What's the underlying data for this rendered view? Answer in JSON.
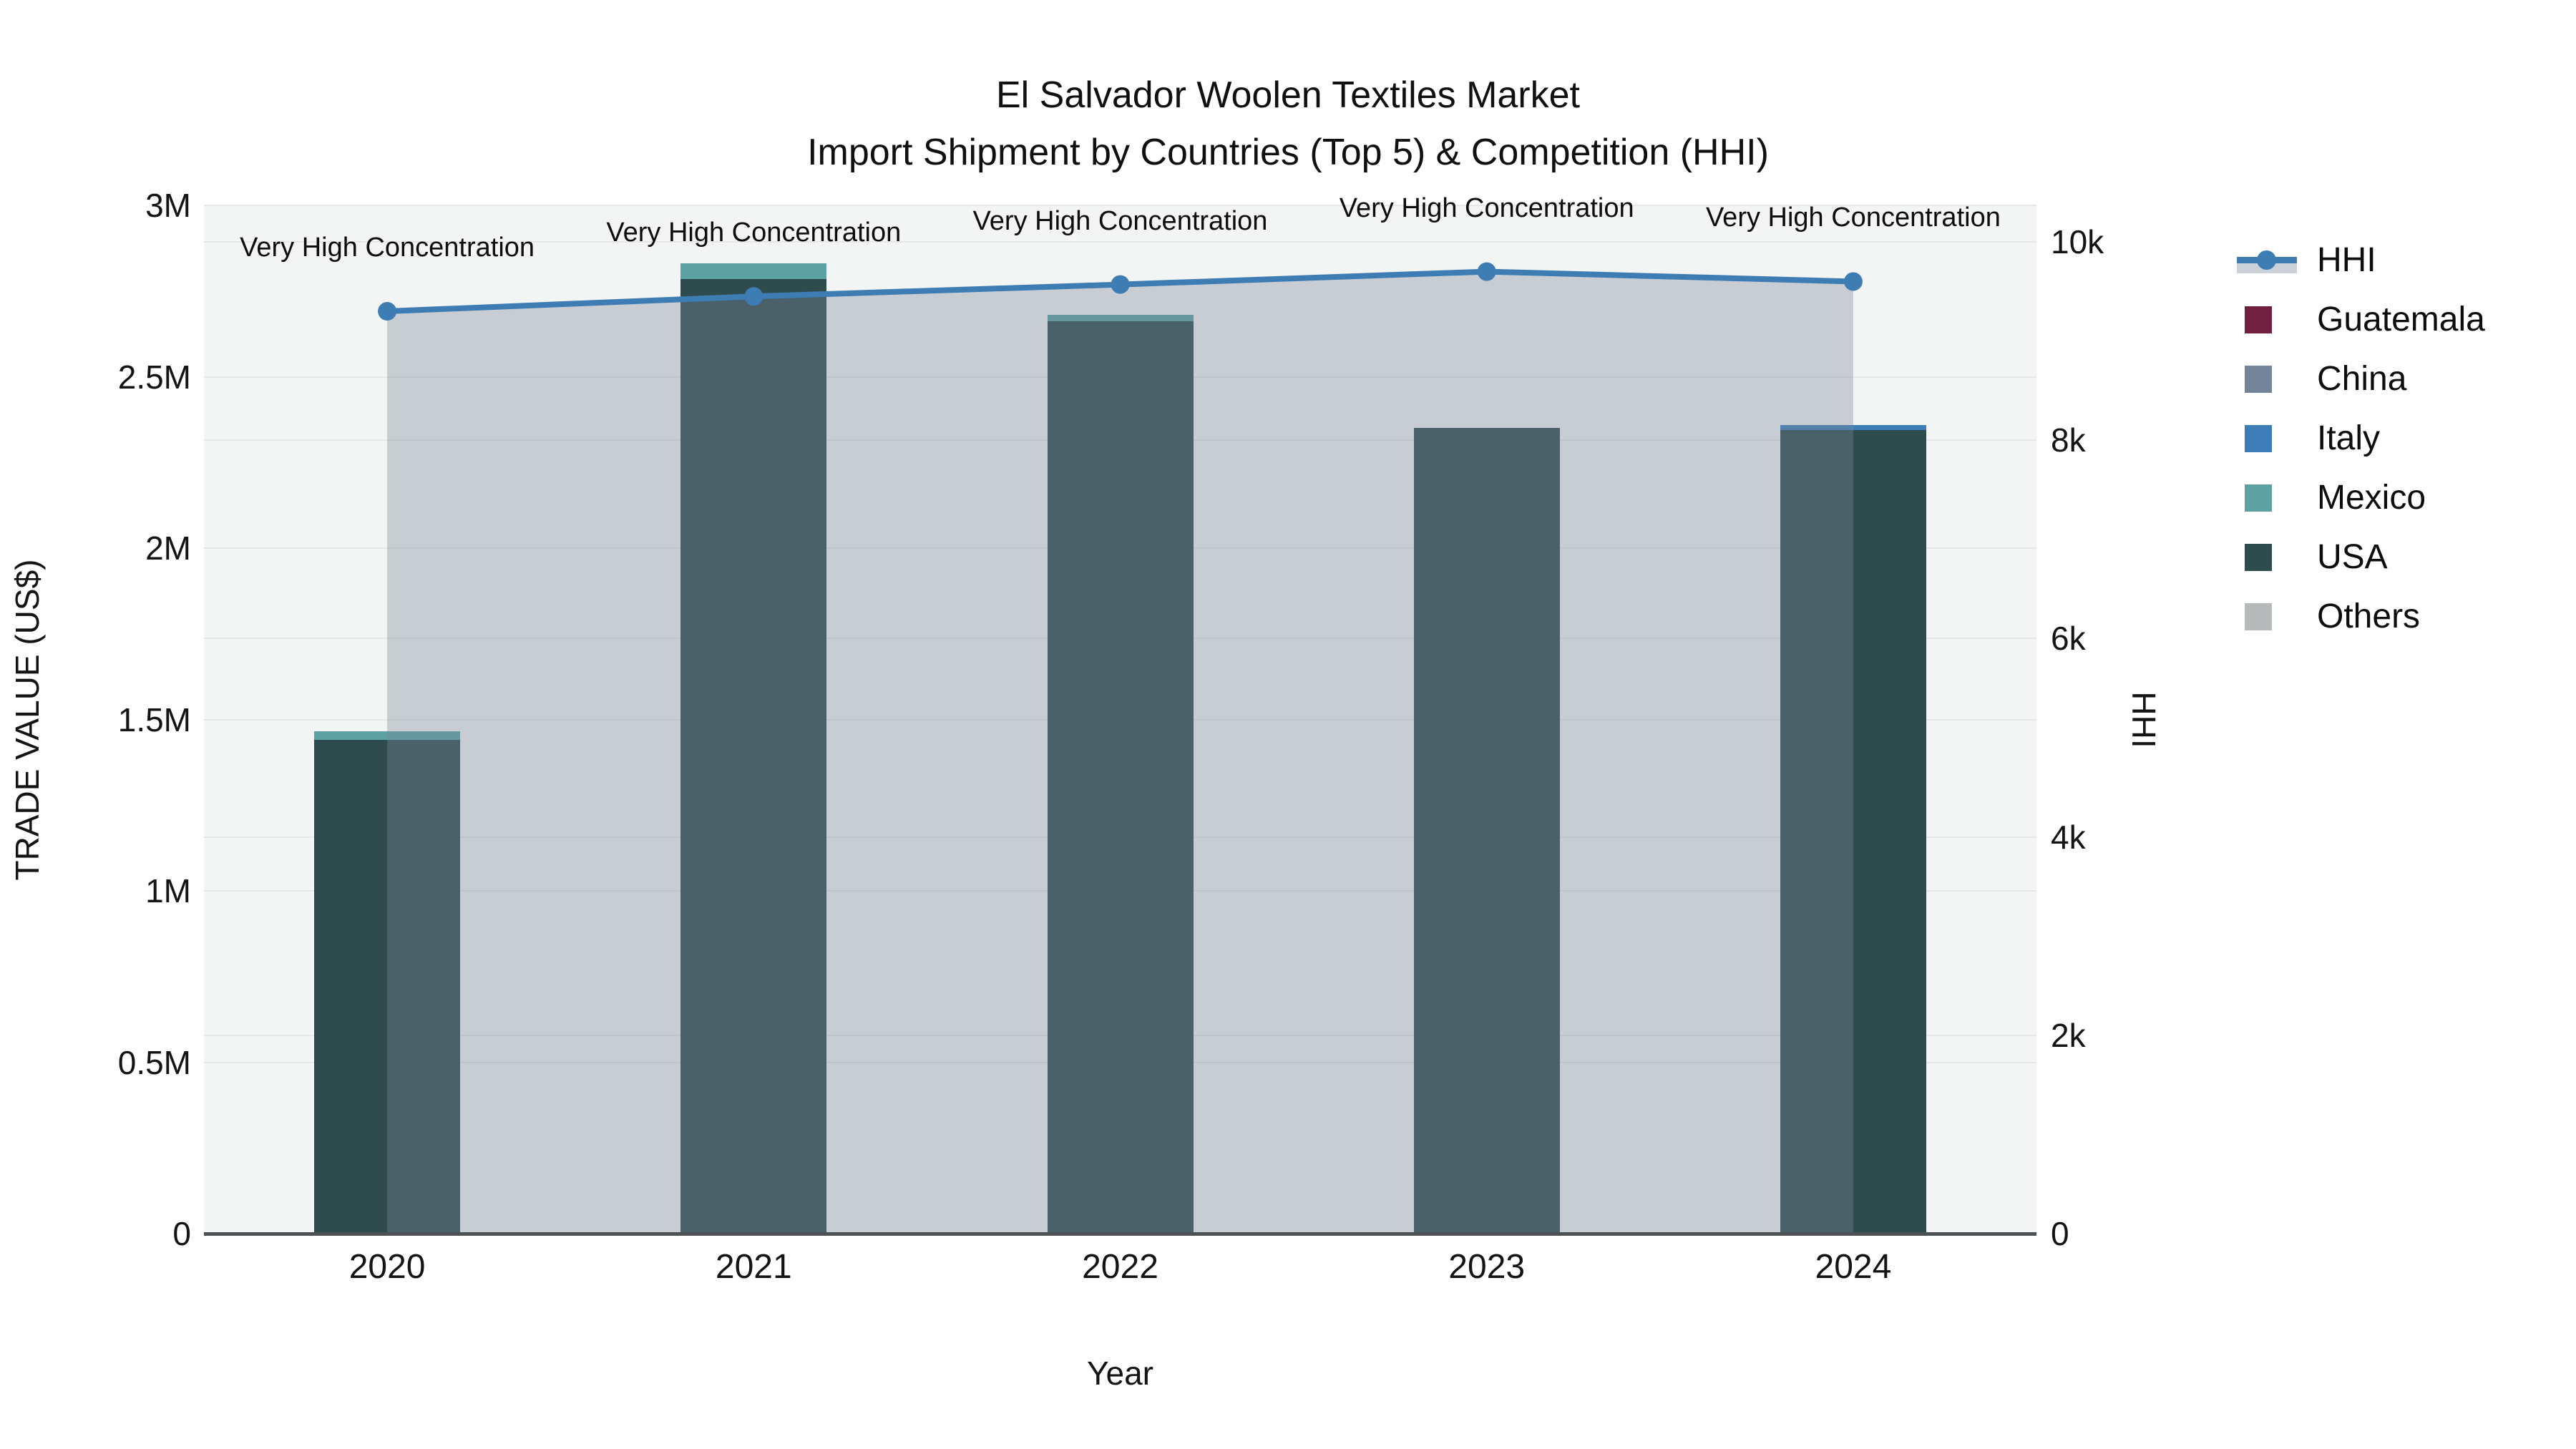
{
  "chart_data": {
    "type": "bar",
    "combo": "stacked-bar + line on secondary axis with area fill to zero",
    "title": "El Salvador Woolen Textiles Market",
    "subtitle": "Import Shipment by Countries (Top 5) & Competition (HHI)",
    "xlabel": "Year",
    "ylabel_left": "TRADE VALUE (US$)",
    "ylabel_right": "HHI",
    "categories": [
      "2020",
      "2021",
      "2022",
      "2023",
      "2024"
    ],
    "series": [
      {
        "name": "Guatemala",
        "color": "#71203f",
        "values": [
          0,
          0,
          0,
          0,
          0
        ]
      },
      {
        "name": "China",
        "color": "#74859b",
        "values": [
          0,
          0,
          0,
          0,
          0
        ]
      },
      {
        "name": "Italy",
        "color": "#3f7db8",
        "values": [
          0,
          0,
          0,
          0,
          15000
        ]
      },
      {
        "name": "Mexico",
        "color": "#5da1a2",
        "values": [
          25000,
          46000,
          19000,
          0,
          0
        ]
      },
      {
        "name": "USA",
        "color": "#2e4b4d",
        "values": [
          1440000,
          2784000,
          2661000,
          2350000,
          2345000
        ]
      },
      {
        "name": "Others",
        "color": "#b7babb",
        "values": [
          0,
          0,
          0,
          0,
          0
        ]
      }
    ],
    "hhi_series": {
      "name": "HHI",
      "color": "#3e7cb4",
      "fill_color": "rgba(125,135,155,0.36)",
      "values": [
        9300,
        9450,
        9570,
        9700,
        9600
      ]
    },
    "annotations": [
      {
        "year": "2020",
        "text": "Very High Concentration"
      },
      {
        "year": "2021",
        "text": "Very High Concentration"
      },
      {
        "year": "2022",
        "text": "Very High Concentration"
      },
      {
        "year": "2023",
        "text": "Very High Concentration"
      },
      {
        "year": "2024",
        "text": "Very High Concentration"
      }
    ],
    "y_left": {
      "max": 3000000,
      "tick_values": [
        0,
        500000,
        1000000,
        1500000,
        2000000,
        2500000,
        3000000
      ],
      "tick_labels": [
        "0",
        "0.5M",
        "1M",
        "1.5M",
        "2M",
        "2.5M",
        "3M"
      ]
    },
    "y_right": {
      "max": 10000,
      "tick_values": [
        0,
        2000,
        4000,
        6000,
        8000,
        10000
      ],
      "tick_labels": [
        "0",
        "2k",
        "4k",
        "6k",
        "8k",
        "10k"
      ]
    },
    "legend": [
      {
        "label": "HHI",
        "type": "line",
        "color": "#3e7cb4"
      },
      {
        "label": "Guatemala",
        "type": "swatch",
        "color": "#71203f"
      },
      {
        "label": "China",
        "type": "swatch",
        "color": "#74859b"
      },
      {
        "label": "Italy",
        "type": "swatch",
        "color": "#3f7db8"
      },
      {
        "label": "Mexico",
        "type": "swatch",
        "color": "#5da1a2"
      },
      {
        "label": "USA",
        "type": "swatch",
        "color": "#2e4b4d"
      },
      {
        "label": "Others",
        "type": "swatch",
        "color": "#b7babb"
      }
    ],
    "plot_background": "#f3f4f4",
    "grid_color": "#e6e7e7",
    "axis_line_color": "#4c5154"
  }
}
